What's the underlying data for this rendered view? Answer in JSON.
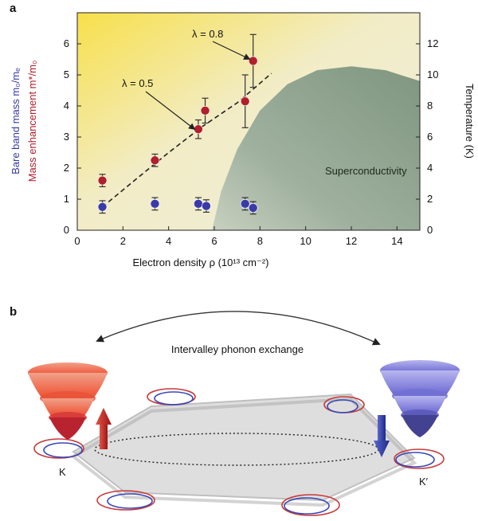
{
  "panel_a": {
    "letter": "a",
    "xlabel": "Electron density ρ (10¹³ cm⁻²)",
    "ylabel_left_top": "Bare band mass m₀/mₑ",
    "ylabel_left_bottom": "Mass enhancement m*/m₀",
    "ylabel_right": "Temperature (K)",
    "region_label": "Superconductivity",
    "annotation_lambda_05": "λ = 0.5",
    "annotation_lambda_08": "λ = 0.8",
    "colors": {
      "red_series": "#b11f2a",
      "blue_series": "#3a3aa8",
      "superconductivity": "#8ea590"
    }
  },
  "chart_data": {
    "type": "scatter",
    "xlim": [
      0,
      15
    ],
    "ylim_left": [
      0,
      7
    ],
    "ylim_right": [
      0,
      14
    ],
    "x_ticks": [
      0,
      2,
      4,
      6,
      8,
      10,
      12,
      14
    ],
    "y_left_ticks": [
      0,
      1,
      2,
      3,
      4,
      5,
      6
    ],
    "y_right_ticks": [
      0,
      2,
      4,
      6,
      8,
      10,
      12
    ],
    "series": [
      {
        "color": "#b11f2a",
        "points": [
          {
            "x": 1.1,
            "y": 1.6,
            "err": 0.2
          },
          {
            "x": 3.4,
            "y": 2.25,
            "err": 0.2
          },
          {
            "x": 5.3,
            "y": 3.25,
            "err": 0.3
          },
          {
            "x": 5.6,
            "y": 3.85,
            "err": 0.4
          },
          {
            "x": 7.35,
            "y": 4.15,
            "err": 0.85
          },
          {
            "x": 7.7,
            "y": 5.45,
            "err": 0.85
          }
        ]
      },
      {
        "color": "#3a3aa8",
        "points": [
          {
            "x": 1.1,
            "y": 0.75,
            "err": 0.2
          },
          {
            "x": 3.4,
            "y": 0.85,
            "err": 0.2
          },
          {
            "x": 5.3,
            "y": 0.85,
            "err": 0.2
          },
          {
            "x": 5.65,
            "y": 0.78,
            "err": 0.2
          },
          {
            "x": 7.35,
            "y": 0.85,
            "err": 0.2
          },
          {
            "x": 7.7,
            "y": 0.72,
            "err": 0.2
          }
        ]
      }
    ],
    "trend_curve": [
      [
        1.1,
        0.75
      ],
      [
        2.5,
        1.6
      ],
      [
        4.0,
        2.5
      ],
      [
        5.5,
        3.35
      ],
      [
        7.0,
        4.1
      ],
      [
        8.5,
        5.05
      ]
    ],
    "superconducting_dome_temperature": [
      [
        5.9,
        0
      ],
      [
        6.3,
        2.5
      ],
      [
        7.0,
        5.2
      ],
      [
        8.0,
        7.7
      ],
      [
        9.2,
        9.4
      ],
      [
        10.5,
        10.3
      ],
      [
        12.0,
        10.55
      ],
      [
        13.5,
        10.3
      ],
      [
        15.0,
        9.6
      ]
    ]
  },
  "panel_b": {
    "letter": "b",
    "exchange_label": "Intervalley phonon exchange",
    "valley_k": "K",
    "valley_k_prime": "K′",
    "colors": {
      "valley_k": "#e5522d",
      "valley_k_prime": "#6b6ad0",
      "spin_up": "#c42020",
      "spin_down": "#2c3aa6"
    }
  }
}
